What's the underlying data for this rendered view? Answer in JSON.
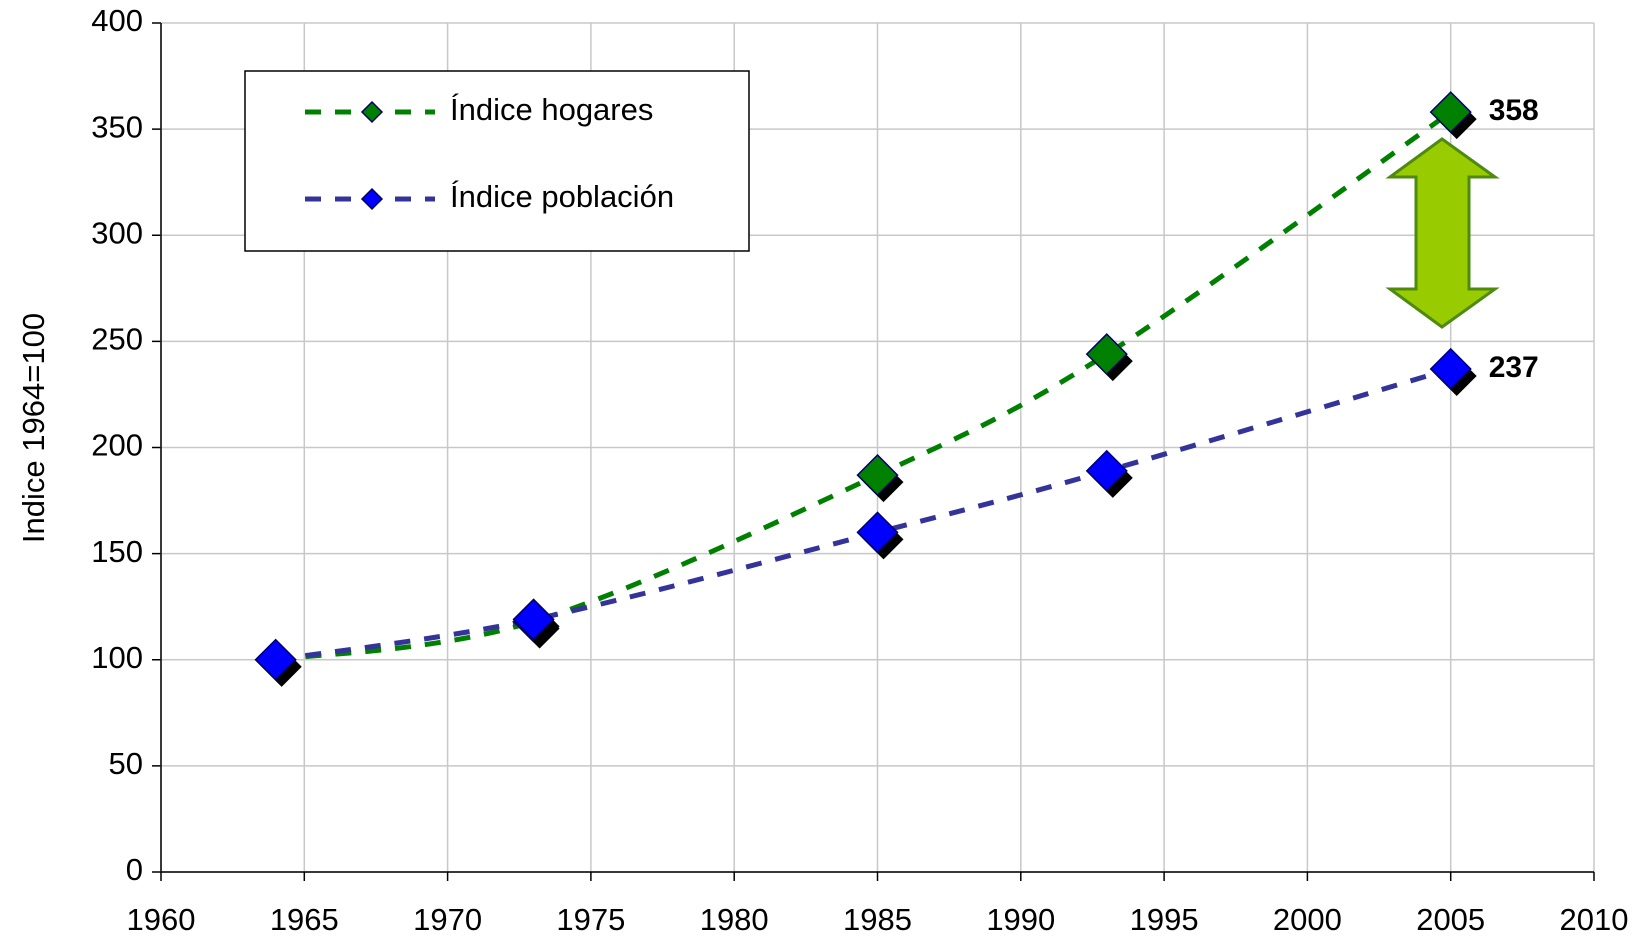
{
  "chart_data": {
    "type": "line",
    "y_label": "Indice 1964=100",
    "x": [
      1964,
      1973,
      1985,
      1993,
      2005
    ],
    "series": [
      {
        "name": "Índice hogares",
        "color": "#008000",
        "line_color": "#008000",
        "values": [
          100,
          118,
          187,
          244,
          358
        ]
      },
      {
        "name": "Índice población",
        "color": "#0000ff",
        "line_color": "#333399",
        "values": [
          100,
          119,
          160,
          189,
          237
        ]
      }
    ],
    "xlim": [
      1960,
      2010
    ],
    "xticks": [
      1960,
      1965,
      1970,
      1975,
      1980,
      1985,
      1990,
      1995,
      2000,
      2005,
      2010
    ],
    "ylim": [
      0,
      400
    ],
    "yticks": [
      0,
      50,
      100,
      150,
      200,
      250,
      300,
      350,
      400
    ],
    "grid": true,
    "legend": "upper left"
  }
}
